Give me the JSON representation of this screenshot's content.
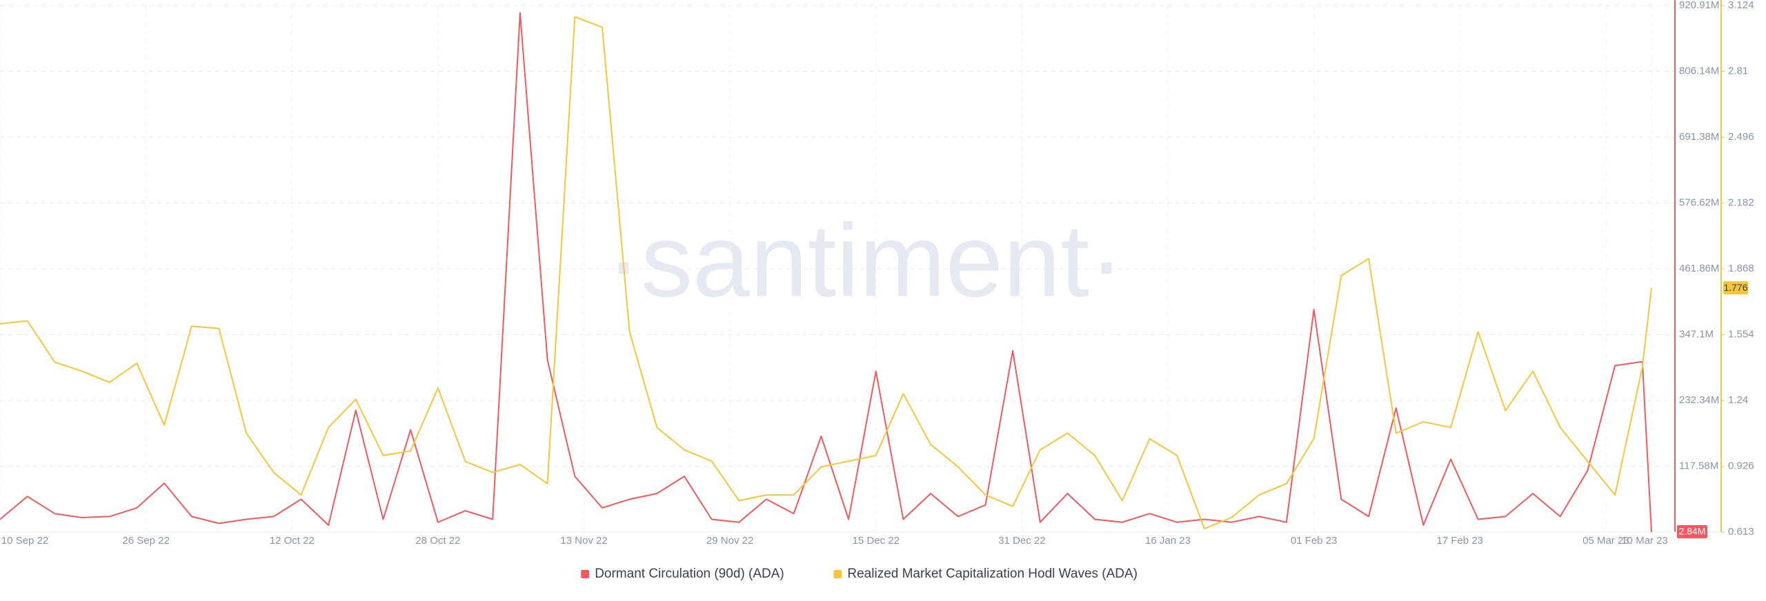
{
  "chart_data": {
    "type": "line",
    "watermark": "·santiment·",
    "x": [
      "2022-09-10",
      "2022-09-13",
      "2022-09-16",
      "2022-09-19",
      "2022-09-22",
      "2022-09-25",
      "2022-09-28",
      "2022-10-01",
      "2022-10-04",
      "2022-10-07",
      "2022-10-10",
      "2022-10-13",
      "2022-10-16",
      "2022-10-19",
      "2022-10-22",
      "2022-10-25",
      "2022-10-28",
      "2022-10-31",
      "2022-11-03",
      "2022-11-06",
      "2022-11-09",
      "2022-11-12",
      "2022-11-15",
      "2022-11-18",
      "2022-11-21",
      "2022-11-24",
      "2022-11-27",
      "2022-11-30",
      "2022-12-03",
      "2022-12-06",
      "2022-12-09",
      "2022-12-12",
      "2022-12-15",
      "2022-12-18",
      "2022-12-21",
      "2022-12-24",
      "2022-12-27",
      "2022-12-30",
      "2023-01-02",
      "2023-01-05",
      "2023-01-08",
      "2023-01-11",
      "2023-01-14",
      "2023-01-17",
      "2023-01-20",
      "2023-01-23",
      "2023-01-26",
      "2023-01-29",
      "2023-02-01",
      "2023-02-04",
      "2023-02-07",
      "2023-02-10",
      "2023-02-13",
      "2023-02-16",
      "2023-02-19",
      "2023-02-22",
      "2023-02-25",
      "2023-02-28",
      "2023-03-03",
      "2023-03-06",
      "2023-03-09",
      "2023-03-10"
    ],
    "series": [
      {
        "name": "Dormant Circulation (90d) (ADA)",
        "color": "#f0595e",
        "axis": "y",
        "values": [
          25000000,
          65000000,
          35000000,
          28000000,
          30000000,
          45000000,
          88000000,
          30000000,
          18000000,
          25000000,
          30000000,
          60000000,
          15000000,
          215000000,
          25000000,
          181000000,
          20000000,
          40000000,
          25000000,
          908000000,
          303000000,
          100000000,
          45000000,
          60000000,
          70000000,
          100000000,
          25000000,
          20000000,
          60000000,
          35000000,
          170000000,
          25000000,
          283000000,
          25000000,
          70000000,
          30000000,
          50000000,
          319000000,
          20000000,
          70000000,
          25000000,
          20000000,
          35000000,
          20000000,
          25000000,
          20000000,
          30000000,
          20000000,
          391000000,
          60000000,
          30000000,
          219000000,
          15000000,
          130000000,
          25000000,
          30000000,
          70000000,
          30000000,
          110000000,
          293000000,
          300000000,
          2840000
        ],
        "value_labels": [
          null,
          null,
          null,
          null,
          null,
          null,
          null,
          null,
          null,
          null,
          null,
          null,
          null,
          null,
          null,
          null,
          null,
          null,
          null,
          null,
          null,
          null,
          null,
          null,
          null,
          null,
          null,
          null,
          null,
          null,
          null,
          null,
          null,
          null,
          null,
          null,
          null,
          null,
          null,
          null,
          null,
          null,
          null,
          null,
          null,
          null,
          null,
          null,
          null,
          null,
          null,
          null,
          null,
          null,
          null,
          null,
          null,
          null,
          null,
          null,
          null,
          "2.84M"
        ]
      },
      {
        "name": "Realized Market Capitalization Hodl Waves (ADA)",
        "color": "#f7c638",
        "axis": "y2",
        "values": [
          1.606,
          1.62,
          1.423,
          1.38,
          1.327,
          1.418,
          1.123,
          1.595,
          1.584,
          1.085,
          0.897,
          0.79,
          1.112,
          1.246,
          0.978,
          1.0,
          1.3,
          0.95,
          0.897,
          0.935,
          0.844,
          3.07,
          3.02,
          1.568,
          1.112,
          1.005,
          0.951,
          0.763,
          0.79,
          0.79,
          0.924,
          0.951,
          0.978,
          1.273,
          1.031,
          0.924,
          0.79,
          0.736,
          1.005,
          1.085,
          0.978,
          0.763,
          1.058,
          0.978,
          0.629,
          0.683,
          0.79,
          0.844,
          1.058,
          1.836,
          1.917,
          1.085,
          1.139,
          1.112,
          1.568,
          1.192,
          1.38,
          1.112,
          0.951,
          0.79,
          1.4,
          1.776
        ]
      }
    ],
    "xlim": [
      "2022-09-10",
      "2023-03-10"
    ],
    "xticks": [
      {
        "value": "2022-09-10",
        "label": "10 Sep 22"
      },
      {
        "value": "2022-09-26",
        "label": "26 Sep 22"
      },
      {
        "value": "2022-10-12",
        "label": "12 Oct 22"
      },
      {
        "value": "2022-10-28",
        "label": "28 Oct 22"
      },
      {
        "value": "2022-11-13",
        "label": "13 Nov 22"
      },
      {
        "value": "2022-11-29",
        "label": "29 Nov 22"
      },
      {
        "value": "2022-12-15",
        "label": "15 Dec 22"
      },
      {
        "value": "2022-12-31",
        "label": "31 Dec 22"
      },
      {
        "value": "2023-01-16",
        "label": "16 Jan 23"
      },
      {
        "value": "2023-02-01",
        "label": "01 Feb 23"
      },
      {
        "value": "2023-02-17",
        "label": "17 Feb 23"
      },
      {
        "value": "2023-03-05",
        "label": "05 Mar 23"
      },
      {
        "value": "2023-03-10",
        "label": "10 Mar 23"
      }
    ],
    "ylim": [
      2820000,
      920910000
    ],
    "yticks": [
      {
        "value": 117580000,
        "label": "117.58M"
      },
      {
        "value": 232340000,
        "label": "232.34M"
      },
      {
        "value": 347100000,
        "label": "347.1M"
      },
      {
        "value": 461860000,
        "label": "461.86M"
      },
      {
        "value": 576620000,
        "label": "576.62M"
      },
      {
        "value": 691380000,
        "label": "691.38M"
      },
      {
        "value": 806140000,
        "label": "806.14M"
      },
      {
        "value": 920910000,
        "label": "920.91M"
      }
    ],
    "y2lim": [
      0.613,
      3.124
    ],
    "y2ticks": [
      0.613,
      0.926,
      1.24,
      1.554,
      1.868,
      2.182,
      2.496,
      2.81,
      3.124
    ],
    "grid": true,
    "legend": "bottom"
  }
}
